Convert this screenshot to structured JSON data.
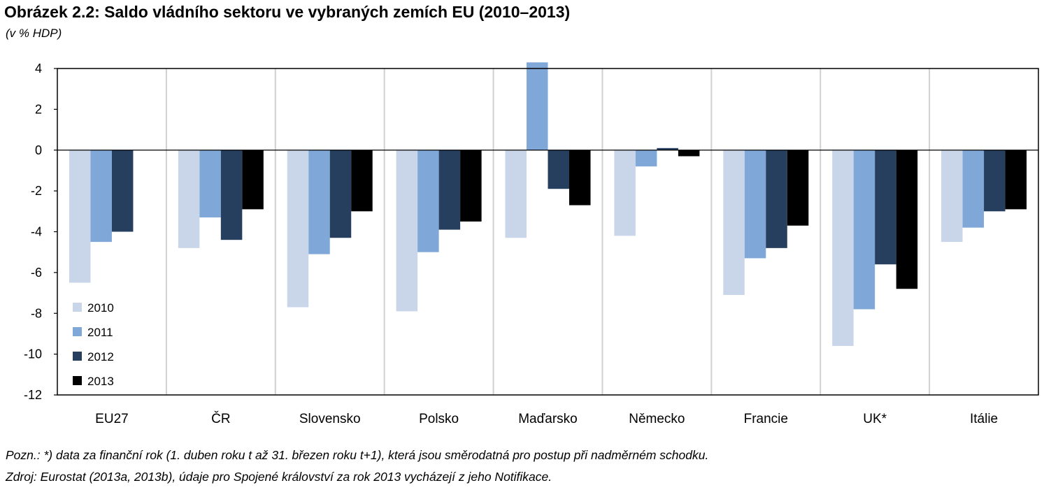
{
  "title": "Obrázek 2.2: Saldo vládního sektoru ve vybraných zemích EU (2010–2013)",
  "subtitle": "(v % HDP)",
  "note": "Pozn.: *) data za finanční rok (1. duben roku t až 31. březen roku t+1), která jsou směrodatná pro postup při nadměrném schodku.",
  "source": "Zdroj: Eurostat (2013a, 2013b), údaje pro Spojené království za rok 2013 vycházejí z jeho Notifikace.",
  "chart_data": {
    "type": "bar",
    "categories": [
      "EU27",
      "ČR",
      "Slovensko",
      "Polsko",
      "Maďarsko",
      "Německo",
      "Francie",
      "UK*",
      "Itálie"
    ],
    "series": [
      {
        "name": "2010",
        "color": "#c9d6ea",
        "values": [
          -6.5,
          -4.8,
          -7.7,
          -7.9,
          -4.3,
          -4.2,
          -7.1,
          -9.6,
          -4.5
        ]
      },
      {
        "name": "2011",
        "color": "#7fa8d8",
        "values": [
          -4.5,
          -3.3,
          -5.1,
          -5.0,
          4.3,
          -0.8,
          -5.3,
          -7.8,
          -3.8
        ]
      },
      {
        "name": "2012",
        "color": "#263f5e",
        "values": [
          -4.0,
          -4.4,
          -4.3,
          -3.9,
          -1.9,
          0.1,
          -4.8,
          -5.6,
          -3.0
        ]
      },
      {
        "name": "2013",
        "color": "#000000",
        "values": [
          null,
          -2.9,
          -3.0,
          -3.5,
          -2.7,
          -0.3,
          -3.7,
          -6.8,
          -2.9
        ]
      }
    ],
    "ylim": [
      -12,
      4
    ],
    "yticks": [
      4,
      2,
      0,
      -2,
      -4,
      -6,
      -8,
      -10,
      -12
    ],
    "grid": "vertical",
    "legend_position": "bottom-left inside"
  }
}
